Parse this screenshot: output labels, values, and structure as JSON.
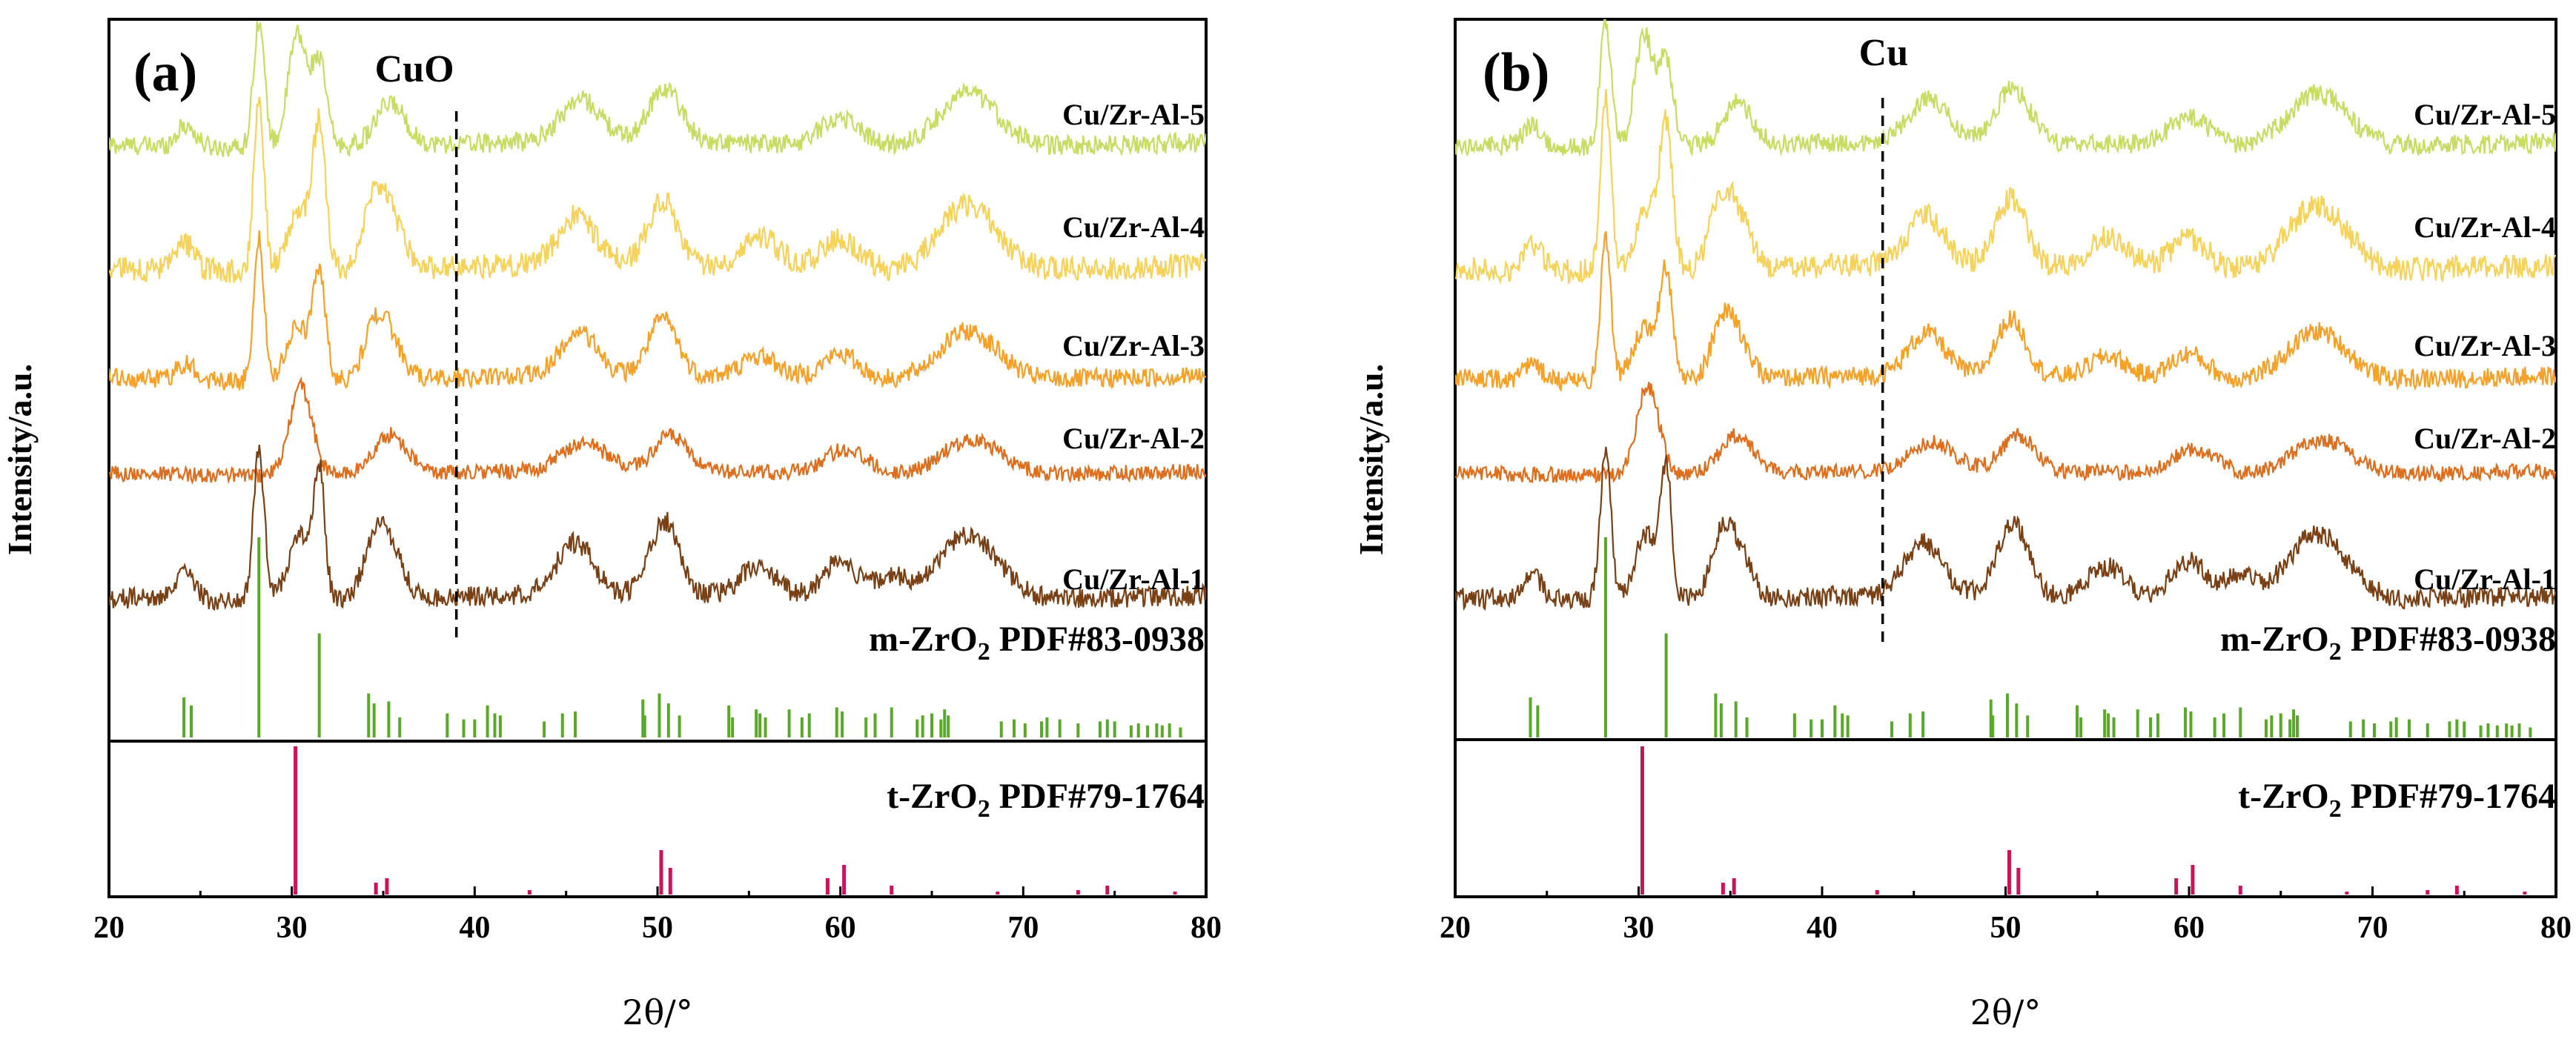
{
  "chart_data": [
    {
      "type": "line",
      "panel_label": "(a)",
      "annotation": "CuO",
      "annotation_x": 39,
      "xlabel": "2θ/°",
      "ylabel": "Intensity/a.u.",
      "xlim": [
        20,
        80
      ],
      "xticks": [
        "20",
        "30",
        "40",
        "50",
        "60",
        "70",
        "80"
      ],
      "series": [
        {
          "name": "Cu/Zr-Al-5",
          "color": "#c8dc64"
        },
        {
          "name": "Cu/Zr-Al-4",
          "color": "#f5d25a"
        },
        {
          "name": "Cu/Zr-Al-3",
          "color": "#f5a028"
        },
        {
          "name": "Cu/Zr-Al-2",
          "color": "#dc6e1e"
        },
        {
          "name": "Cu/Zr-Al-1",
          "color": "#784014"
        }
      ],
      "reference_patterns": [
        {
          "label_main": "m-ZrO",
          "label_sub": "2",
          "label_tail": " PDF#83-0938",
          "color": "#5aa82a"
        },
        {
          "label_main": "t-ZrO",
          "label_sub": "2",
          "label_tail": " PDF#79-1764",
          "color": "#c8145a"
        }
      ]
    },
    {
      "type": "line",
      "panel_label": "(b)",
      "annotation": "Cu",
      "annotation_x": 43.3,
      "xlabel": "2θ/°",
      "ylabel": "Intensity/a.u.",
      "xlim": [
        20,
        80
      ],
      "xticks": [
        "20",
        "30",
        "40",
        "50",
        "60",
        "70",
        "80"
      ],
      "series": [
        {
          "name": "Cu/Zr-Al-5",
          "color": "#c8dc64"
        },
        {
          "name": "Cu/Zr-Al-4",
          "color": "#f5d25a"
        },
        {
          "name": "Cu/Zr-Al-3",
          "color": "#f5a028"
        },
        {
          "name": "Cu/Zr-Al-2",
          "color": "#dc6e1e"
        },
        {
          "name": "Cu/Zr-Al-1",
          "color": "#784014"
        }
      ],
      "reference_patterns": [
        {
          "label_main": "m-ZrO",
          "label_sub": "2",
          "label_tail": " PDF#83-0938",
          "color": "#5aa82a"
        },
        {
          "label_main": "t-ZrO",
          "label_sub": "2",
          "label_tail": " PDF#79-1764",
          "color": "#c8145a"
        }
      ]
    }
  ],
  "m_zro2_sticks": [
    [
      24.1,
      0.2
    ],
    [
      24.5,
      0.16
    ],
    [
      28.2,
      1.0
    ],
    [
      31.5,
      0.52
    ],
    [
      34.2,
      0.22
    ],
    [
      34.5,
      0.17
    ],
    [
      35.3,
      0.18
    ],
    [
      35.9,
      0.1
    ],
    [
      38.5,
      0.12
    ],
    [
      39.4,
      0.09
    ],
    [
      40.0,
      0.09
    ],
    [
      40.7,
      0.16
    ],
    [
      41.1,
      0.12
    ],
    [
      41.4,
      0.11
    ],
    [
      43.8,
      0.08
    ],
    [
      44.8,
      0.12
    ],
    [
      45.5,
      0.13
    ],
    [
      49.2,
      0.19
    ],
    [
      49.3,
      0.11
    ],
    [
      50.1,
      0.22
    ],
    [
      50.6,
      0.17
    ],
    [
      51.2,
      0.11
    ],
    [
      53.9,
      0.16
    ],
    [
      54.1,
      0.1
    ],
    [
      55.4,
      0.14
    ],
    [
      55.6,
      0.12
    ],
    [
      55.9,
      0.1
    ],
    [
      57.2,
      0.14
    ],
    [
      57.9,
      0.1
    ],
    [
      58.3,
      0.12
    ],
    [
      59.8,
      0.15
    ],
    [
      60.1,
      0.13
    ],
    [
      61.4,
      0.1
    ],
    [
      61.9,
      0.12
    ],
    [
      62.8,
      0.15
    ],
    [
      64.2,
      0.09
    ],
    [
      64.5,
      0.11
    ],
    [
      65.0,
      0.12
    ],
    [
      65.5,
      0.09
    ],
    [
      65.7,
      0.14
    ],
    [
      65.9,
      0.11
    ],
    [
      68.8,
      0.08
    ],
    [
      69.5,
      0.09
    ],
    [
      70.1,
      0.07
    ],
    [
      71.0,
      0.08
    ],
    [
      71.3,
      0.1
    ],
    [
      72.0,
      0.09
    ],
    [
      73.0,
      0.07
    ],
    [
      74.2,
      0.08
    ],
    [
      74.6,
      0.09
    ],
    [
      75.0,
      0.08
    ],
    [
      75.9,
      0.06
    ],
    [
      76.3,
      0.07
    ],
    [
      76.8,
      0.06
    ],
    [
      77.3,
      0.07
    ],
    [
      77.6,
      0.06
    ],
    [
      78.0,
      0.07
    ],
    [
      78.6,
      0.05
    ]
  ],
  "t_zro2_sticks": [
    [
      30.2,
      1.0
    ],
    [
      34.6,
      0.08
    ],
    [
      35.2,
      0.11
    ],
    [
      43.0,
      0.03
    ],
    [
      50.2,
      0.3
    ],
    [
      50.7,
      0.18
    ],
    [
      59.3,
      0.11
    ],
    [
      60.2,
      0.2
    ],
    [
      62.8,
      0.06
    ],
    [
      68.6,
      0.02
    ],
    [
      73.0,
      0.03
    ],
    [
      74.6,
      0.06
    ],
    [
      78.3,
      0.02
    ]
  ],
  "peaks": {
    "Cu/Zr-Al-1": [
      [
        24.2,
        0.18,
        0.5
      ],
      [
        28.2,
        1.0,
        0.3
      ],
      [
        30.4,
        0.45,
        0.6
      ],
      [
        31.5,
        0.85,
        0.3
      ],
      [
        34.5,
        0.35,
        0.6
      ],
      [
        35.4,
        0.3,
        0.7
      ],
      [
        45.5,
        0.35,
        1.0
      ],
      [
        50.4,
        0.5,
        0.8
      ],
      [
        55.5,
        0.2,
        1.0
      ],
      [
        60.0,
        0.25,
        1.0
      ],
      [
        62.8,
        0.15,
        0.8
      ],
      [
        67.0,
        0.45,
        1.6
      ]
    ],
    "Cu/Zr-Al-2": [
      [
        30.5,
        0.8,
        0.6
      ],
      [
        35.4,
        0.35,
        0.9
      ],
      [
        46.0,
        0.25,
        1.2
      ],
      [
        50.7,
        0.32,
        0.9
      ],
      [
        60.3,
        0.22,
        1.2
      ],
      [
        67.2,
        0.32,
        1.6
      ]
    ],
    "Cu/Zr-Al-3": [
      [
        24.2,
        0.12,
        0.5
      ],
      [
        28.2,
        1.0,
        0.28
      ],
      [
        30.3,
        0.38,
        0.6
      ],
      [
        31.5,
        0.75,
        0.35
      ],
      [
        34.5,
        0.3,
        0.6
      ],
      [
        35.3,
        0.28,
        0.7
      ],
      [
        45.7,
        0.3,
        1.0
      ],
      [
        50.3,
        0.4,
        0.8
      ],
      [
        55.6,
        0.15,
        1.0
      ],
      [
        60.0,
        0.18,
        1.0
      ],
      [
        67.0,
        0.35,
        1.6
      ]
    ],
    "Cu/Zr-Al-4": [
      [
        24.2,
        0.15,
        0.5
      ],
      [
        28.2,
        1.0,
        0.28
      ],
      [
        30.4,
        0.35,
        0.6
      ],
      [
        31.5,
        0.8,
        0.35
      ],
      [
        34.4,
        0.32,
        0.6
      ],
      [
        35.4,
        0.3,
        0.7
      ],
      [
        45.6,
        0.28,
        1.0
      ],
      [
        50.3,
        0.38,
        0.8
      ],
      [
        55.6,
        0.18,
        1.0
      ],
      [
        60.0,
        0.18,
        1.0
      ],
      [
        67.0,
        0.38,
        1.6
      ]
    ],
    "Cu/Zr-Al-5": [
      [
        24.2,
        0.15,
        0.5
      ],
      [
        28.2,
        0.9,
        0.3
      ],
      [
        30.3,
        0.8,
        0.5
      ],
      [
        31.5,
        0.6,
        0.4
      ],
      [
        35.4,
        0.3,
        0.8
      ],
      [
        45.8,
        0.3,
        1.1
      ],
      [
        50.4,
        0.38,
        0.9
      ],
      [
        60.0,
        0.2,
        1.1
      ],
      [
        67.0,
        0.38,
        1.6
      ]
    ]
  }
}
